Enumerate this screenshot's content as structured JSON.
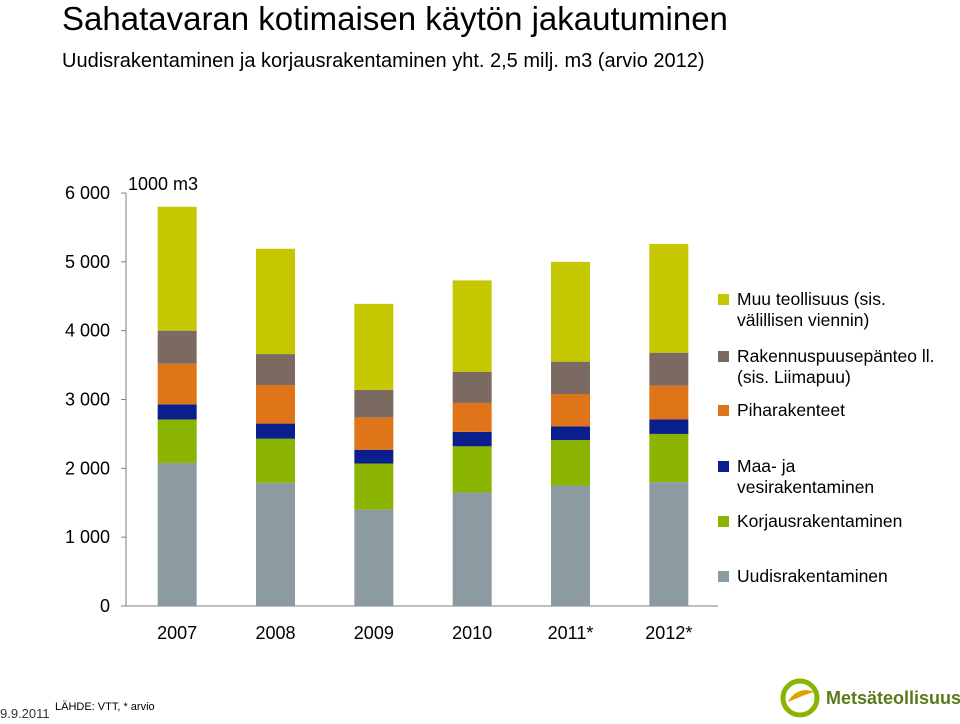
{
  "header": {
    "title": "Sahatavaran kotimaisen käytön jakautuminen",
    "subtitle": "Uudisrakentaminen ja korjausrakentaminen yht. 2,5 milj. m3 (arvio 2012)"
  },
  "chart_data": {
    "type": "bar",
    "stacked": true,
    "unit_label": "1000 m3",
    "categories": [
      "2007",
      "2008",
      "2009",
      "2010",
      "2011*",
      "2012*"
    ],
    "ylim": [
      0,
      6000
    ],
    "yticks": [
      0,
      1000,
      2000,
      3000,
      4000,
      5000,
      6000
    ],
    "ytick_labels": [
      "0",
      "1 000",
      "2 000",
      "3 000",
      "4 000",
      "5 000",
      "6 000"
    ],
    "grid": false,
    "legend_position": "right",
    "series": [
      {
        "name": "Uudisrakentaminen",
        "color": "#8c9aa2",
        "values": [
          2080,
          1790,
          1400,
          1650,
          1750,
          1800
        ]
      },
      {
        "name": "Korjausrakentaminen",
        "color": "#8ab400",
        "values": [
          630,
          640,
          670,
          670,
          660,
          700
        ]
      },
      {
        "name": "Maa- ja vesirakentaminen",
        "color": "#0b1f8c",
        "values": [
          220,
          220,
          200,
          210,
          200,
          210
        ]
      },
      {
        "name": "Piharakenteet",
        "color": "#e07418",
        "values": [
          590,
          560,
          470,
          420,
          470,
          490
        ]
      },
      {
        "name": "Rakennuspuusepänteollisuus (sis. Liimapuu)",
        "color": "#7b6a62",
        "values": [
          480,
          450,
          400,
          450,
          470,
          480
        ]
      },
      {
        "name": "Muu teollisuus (sis. välillisen viennin)",
        "color": "#c5c800",
        "values": [
          1800,
          1530,
          1250,
          1330,
          1450,
          1580
        ]
      }
    ]
  },
  "legend": {
    "items": [
      {
        "label": "Muu teollisuus (sis. välillisen viennin)",
        "color": "#c5c800"
      },
      {
        "label": "Rakennuspuusepänteollisuus (sis. Liimapuu)",
        "color": "#7b6a62"
      },
      {
        "label": "Piharakenteet",
        "color": "#e07418"
      },
      {
        "label": "Maa- ja vesirakentaminen",
        "color": "#0b1f8c"
      },
      {
        "label": "Korjausrakentaminen",
        "color": "#8ab400"
      },
      {
        "label": "Uudisrakentaminen",
        "color": "#8c9aa2"
      }
    ],
    "display_labels": [
      "Muu teollisuus (sis. välillisen viennin)",
      "Rakennuspuusepänteo ll. (sis. Liimapuu)",
      "Piharakenteet",
      "Maa- ja vesirakentaminen",
      "Korjausrakentaminen",
      "Uudisrakentaminen"
    ]
  },
  "footer": {
    "date": "9.9.2011",
    "source": "LÄHDE: VTT,  * arvio",
    "logo_text": "Metsäteollisuus"
  }
}
